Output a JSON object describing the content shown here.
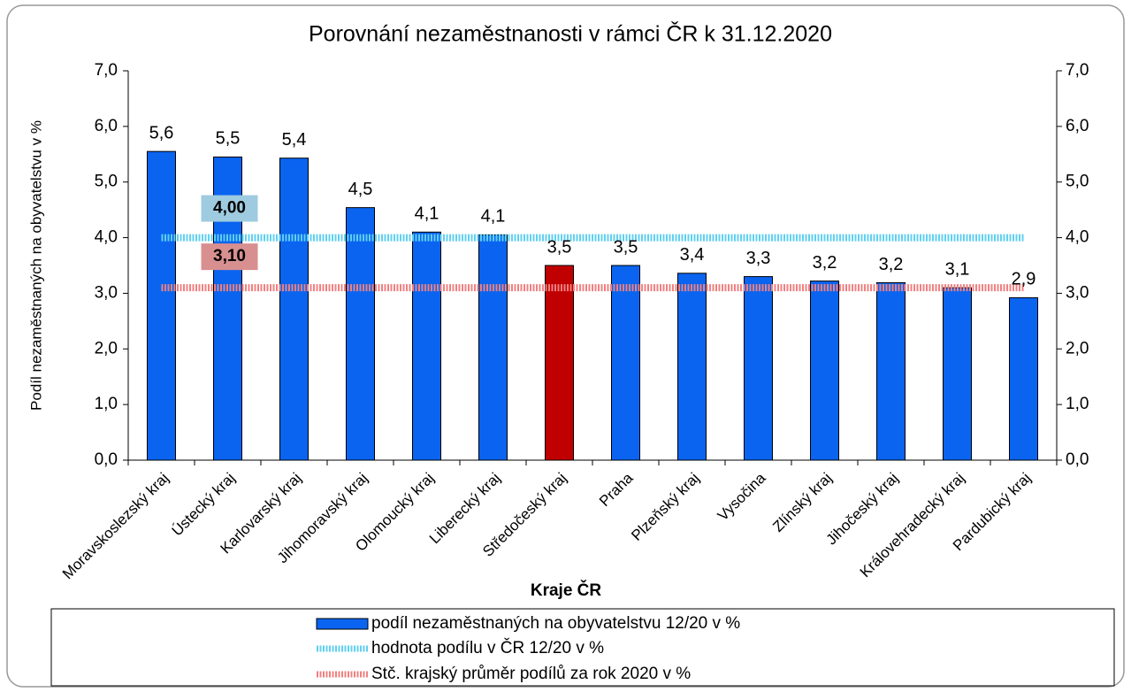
{
  "chart_data": {
    "type": "bar",
    "title": "Porovnání nezaměstnanosti v rámci ČR k 31.12.2020",
    "y_label": "Podíl nezaměstnaných na obyvatelstvu v %",
    "x_label": "Kraje ČR",
    "categories": [
      "Moravskoslezský kraj",
      "Ústecký kraj",
      "Karlovarský kraj",
      "Jihomoravský kraj",
      "Olomoucký kraj",
      "Liberecký kraj",
      "Středočeský kraj",
      "Praha",
      "Plzeňský kraj",
      "Vysočina",
      "Zlínský kraj",
      "Jihočeský kraj",
      "Královehradecký kraj",
      "Pardubický kraj"
    ],
    "series": [
      {
        "name": "podíl nezaměstnaných na obyvatelstvu 12/20 v %",
        "color": "#0a64f0",
        "colors": [
          "#0a64f0",
          "#0a64f0",
          "#0a64f0",
          "#0a64f0",
          "#0a64f0",
          "#0a64f0",
          "#c00000",
          "#0a64f0",
          "#0a64f0",
          "#0a64f0",
          "#0a64f0",
          "#0a64f0",
          "#0a64f0",
          "#0a64f0"
        ],
        "values": [
          5.55,
          5.45,
          5.43,
          4.54,
          4.1,
          4.05,
          3.5,
          3.5,
          3.36,
          3.3,
          3.22,
          3.19,
          3.1,
          2.92
        ],
        "value_labels": [
          "5,6",
          "5,5",
          "5,4",
          "4,5",
          "4,1",
          "4,1",
          "3,5",
          "3,5",
          "3,4",
          "3,3",
          "3,2",
          "3,2",
          "3,1",
          "2,9"
        ]
      },
      {
        "name": "hodnota podílu v ČR 12/20 v %",
        "color": "#5fd0f0",
        "label_color": "#9fcbe0",
        "value": 4.0,
        "value_label": "4,00"
      },
      {
        "name": "Stč. krajský průměr podílů za rok 2020 v %",
        "color": "#f08080",
        "label_color": "#d88f8f",
        "value": 3.1,
        "value_label": "3,10"
      }
    ],
    "ylim": [
      0,
      7
    ],
    "yticks": [
      {
        "value": 0,
        "label": "0,0"
      },
      {
        "value": 1,
        "label": "1,0"
      },
      {
        "value": 2,
        "label": "2,0"
      },
      {
        "value": 3,
        "label": "3,0"
      },
      {
        "value": 4,
        "label": "4,0"
      },
      {
        "value": 5,
        "label": "5,0"
      },
      {
        "value": 6,
        "label": "6,0"
      },
      {
        "value": 7,
        "label": "7,0"
      }
    ],
    "y2lim": [
      0,
      7
    ],
    "y2ticks": [
      {
        "value": 0,
        "label": "0,0"
      },
      {
        "value": 1,
        "label": "1,0"
      },
      {
        "value": 2,
        "label": "2,0"
      },
      {
        "value": 3,
        "label": "3,0"
      },
      {
        "value": 4,
        "label": "4,0"
      },
      {
        "value": 5,
        "label": "5,0"
      },
      {
        "value": 6,
        "label": "6,0"
      },
      {
        "value": 7,
        "label": "7,0"
      }
    ],
    "grid": false,
    "legend": "bottom"
  }
}
